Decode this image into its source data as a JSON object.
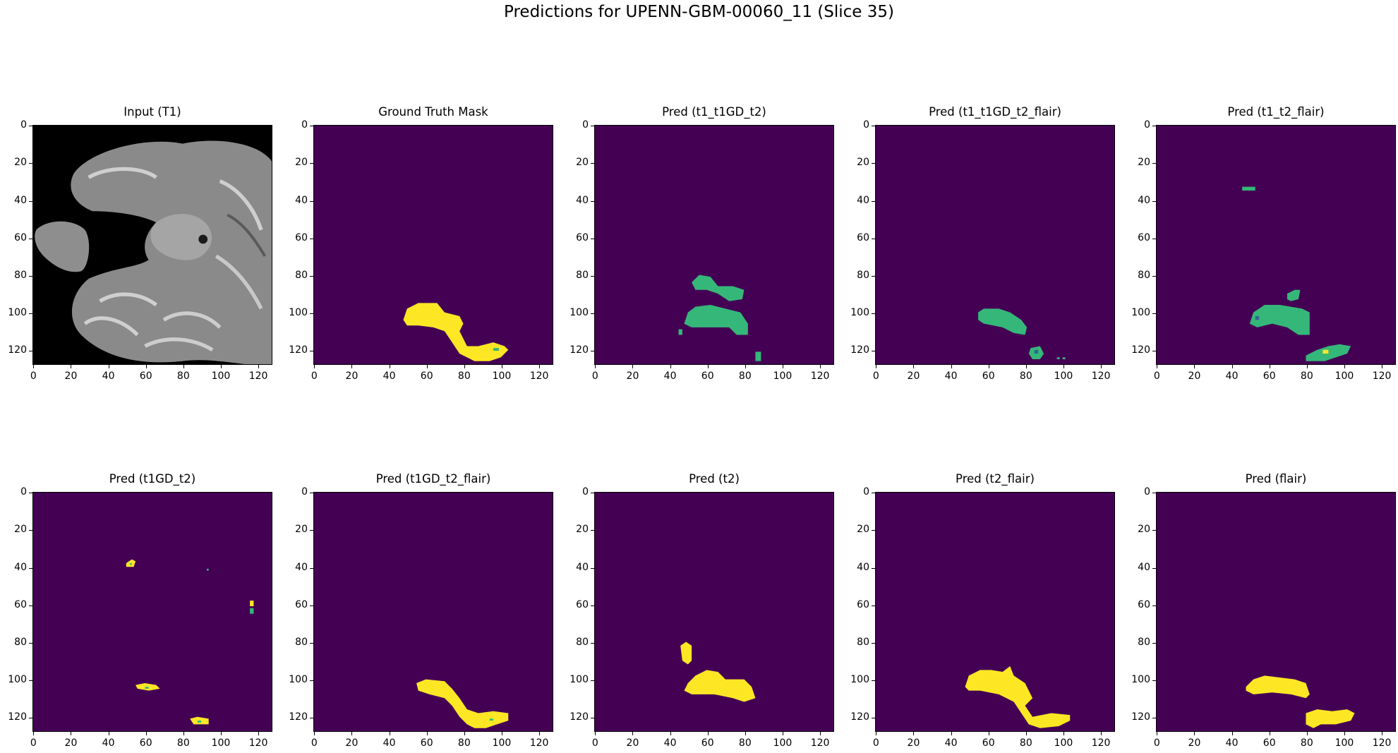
{
  "figure": {
    "title": "Predictions for UPENN-GBM-00060_11 (Slice 35)"
  },
  "colors": {
    "background": "#440154",
    "class_green": "#35b779",
    "class_teal": "#31688e",
    "class_yellow": "#fde725",
    "mri_black": "#000000"
  },
  "chart_data": [
    {
      "type": "heatmap",
      "title": "Input (T1)",
      "content": "brain MRI slice (grayscale)",
      "xlim": [
        0,
        127
      ],
      "ylim": [
        127,
        0
      ],
      "xticks": [
        0,
        20,
        40,
        60,
        80,
        100,
        120
      ],
      "yticks": [
        0,
        20,
        40,
        60,
        80,
        100,
        120
      ]
    },
    {
      "type": "heatmap",
      "title": "Ground Truth Mask",
      "content": "yellow region ~x 48-104, y 95-126",
      "xlim": [
        0,
        127
      ],
      "ylim": [
        127,
        0
      ],
      "xticks": [
        0,
        20,
        40,
        60,
        80,
        100,
        120
      ],
      "yticks": [
        0,
        20,
        40,
        60,
        80,
        100,
        120
      ]
    },
    {
      "type": "heatmap",
      "title": "Pred (t1_t1GD_t2)",
      "content": "green regions ~x 52-82 (y 80-93) and x 48-82 (y 96-112), small at x 87 y 124",
      "xlim": [
        0,
        127
      ],
      "ylim": [
        127,
        0
      ],
      "xticks": [
        0,
        20,
        40,
        60,
        80,
        100,
        120
      ],
      "yticks": [
        0,
        20,
        40,
        60,
        80,
        100,
        120
      ]
    },
    {
      "type": "heatmap",
      "title": "Pred (t1_t1GD_t2_flair)",
      "content": "green region ~x 55-80, y 98-112; small at x 83-90, y 118-126",
      "xlim": [
        0,
        127
      ],
      "ylim": [
        127,
        0
      ],
      "xticks": [
        0,
        20,
        40,
        60,
        80,
        100,
        120
      ],
      "yticks": [
        0,
        20,
        40,
        60,
        80,
        100,
        120
      ]
    },
    {
      "type": "heatmap",
      "title": "Pred (t1_t2_flair)",
      "content": "green regions ~x 50-82, y 95-112 and x 80-105, y 118-126; speck at x 47-52, y 34",
      "xlim": [
        0,
        127
      ],
      "ylim": [
        127,
        0
      ],
      "xticks": [
        0,
        20,
        40,
        60,
        80,
        100,
        120
      ],
      "yticks": [
        0,
        20,
        40,
        60,
        80,
        100,
        120
      ]
    },
    {
      "type": "heatmap",
      "title": "Pred (t1GD_t2)",
      "content": "small yellow specks at (52,38), (60,104), (88,122), (118,60)",
      "xlim": [
        0,
        127
      ],
      "ylim": [
        127,
        0
      ],
      "xticks": [
        0,
        20,
        40,
        60,
        80,
        100,
        120
      ],
      "yticks": [
        0,
        20,
        40,
        60,
        80,
        100,
        120
      ]
    },
    {
      "type": "heatmap",
      "title": "Pred (t1GD_t2_flair)",
      "content": "yellow region ~x 55-105, y 100-126",
      "xlim": [
        0,
        127
      ],
      "ylim": [
        127,
        0
      ],
      "xticks": [
        0,
        20,
        40,
        60,
        80,
        100,
        120
      ],
      "yticks": [
        0,
        20,
        40,
        60,
        80,
        100,
        120
      ]
    },
    {
      "type": "heatmap",
      "title": "Pred (t2)",
      "content": "yellow regions ~x 46-52 y 80-92 and x 48-85 y 95-112",
      "xlim": [
        0,
        127
      ],
      "ylim": [
        127,
        0
      ],
      "xticks": [
        0,
        20,
        40,
        60,
        80,
        100,
        120
      ],
      "yticks": [
        0,
        20,
        40,
        60,
        80,
        100,
        120
      ]
    },
    {
      "type": "heatmap",
      "title": "Pred (t2_flair)",
      "content": "yellow region ~x 47-105, y 93-126",
      "xlim": [
        0,
        127
      ],
      "ylim": [
        127,
        0
      ],
      "xticks": [
        0,
        20,
        40,
        60,
        80,
        100,
        120
      ],
      "yticks": [
        0,
        20,
        40,
        60,
        80,
        100,
        120
      ]
    },
    {
      "type": "heatmap",
      "title": "Pred (flair)",
      "content": "yellow regions ~x 48-82 y 98-110 and x 80-105 y 115-126",
      "xlim": [
        0,
        127
      ],
      "ylim": [
        127,
        0
      ],
      "xticks": [
        0,
        20,
        40,
        60,
        80,
        100,
        120
      ],
      "yticks": [
        0,
        20,
        40,
        60,
        80,
        100,
        120
      ]
    }
  ]
}
